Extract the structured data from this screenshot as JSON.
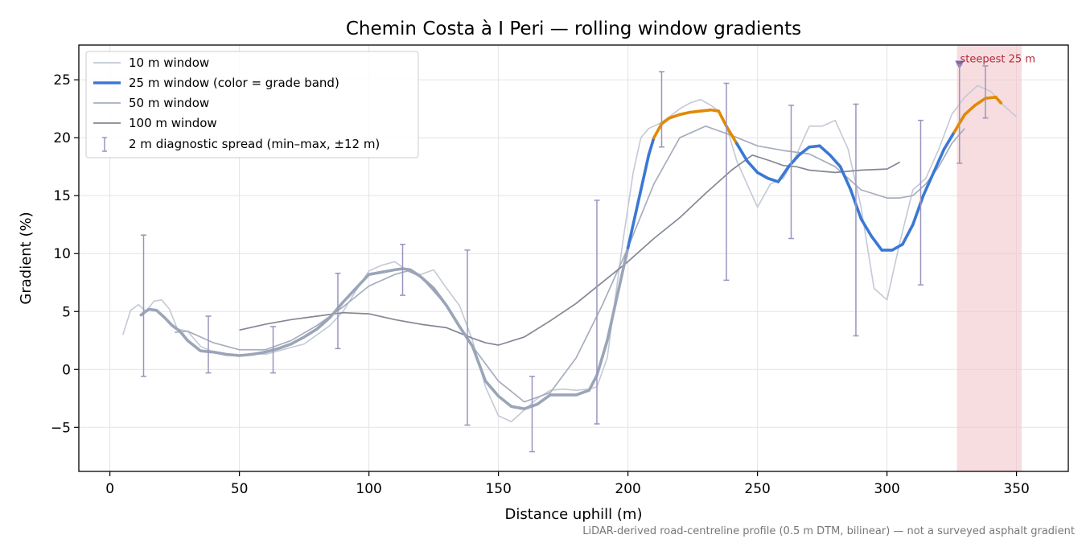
{
  "chart_data": {
    "type": "line",
    "title": "Chemin Costa à I Peri — rolling window gradients",
    "xlabel": "Distance uphill (m)",
    "ylabel": "Gradient (%)",
    "xlim": [
      -12,
      370
    ],
    "ylim": [
      -8.8,
      28
    ],
    "xticks": [
      0,
      50,
      100,
      150,
      200,
      250,
      300,
      350
    ],
    "yticks": [
      -5,
      0,
      5,
      10,
      15,
      20,
      25
    ],
    "grid": true,
    "legend_position": "top-left",
    "footnote": "LiDAR-derived road-centreline profile (0.5 m DTM, bilinear) — not a surveyed asphalt gradient",
    "colors": {
      "w10": "#c3c9d6",
      "w25_base": "#9aa5b8",
      "w25_blue": "#3a78d4",
      "w25_orange": "#e08a00",
      "w50": "#a6aebe",
      "w100": "#838895",
      "errbar": "#9a94bd",
      "highlight": "#f2c6cb",
      "annot": "#b22a3a",
      "marker": "#7d6aa6"
    },
    "series": [
      {
        "name": "10 m window",
        "x": [
          5,
          8,
          11,
          14,
          17,
          20,
          23,
          26,
          30,
          35,
          40,
          45,
          50,
          55,
          60,
          65,
          70,
          75,
          80,
          85,
          90,
          95,
          100,
          105,
          110,
          115,
          120,
          125,
          130,
          135,
          140,
          145,
          150,
          155,
          160,
          165,
          170,
          175,
          180,
          185,
          188,
          192,
          195,
          198,
          202,
          205,
          208,
          212,
          216,
          220,
          224,
          228,
          232,
          235,
          238,
          242,
          246,
          250,
          255,
          260,
          265,
          270,
          275,
          280,
          285,
          290,
          295,
          300,
          305,
          310,
          315,
          320,
          325,
          330,
          335,
          340,
          345,
          350
        ],
        "y": [
          3.0,
          5.1,
          5.6,
          5.0,
          5.9,
          6.0,
          5.2,
          3.5,
          3.3,
          2.0,
          1.5,
          1.2,
          1.2,
          1.4,
          1.3,
          1.6,
          1.9,
          2.2,
          3.0,
          3.8,
          5.0,
          6.8,
          8.5,
          9.0,
          9.3,
          8.5,
          8.2,
          8.6,
          7.0,
          5.5,
          2.5,
          -1.5,
          -4.0,
          -4.5,
          -3.5,
          -2.5,
          -1.8,
          -1.7,
          -1.8,
          -1.7,
          -1.5,
          1.0,
          6.0,
          11.0,
          17.0,
          20.0,
          20.8,
          21.2,
          21.8,
          22.5,
          23.0,
          23.3,
          22.8,
          22.3,
          21.0,
          18.0,
          16.0,
          14.0,
          16.0,
          16.5,
          18.5,
          21.0,
          21.0,
          21.5,
          19.0,
          14.0,
          7.0,
          6.0,
          11.0,
          15.5,
          16.5,
          19.0,
          22.0,
          23.5,
          24.5,
          24.0,
          22.8,
          21.8
        ]
      },
      {
        "name": "25 m window (color = grade band)",
        "x": [
          12,
          15,
          18,
          21,
          24,
          27,
          30,
          35,
          40,
          45,
          50,
          55,
          60,
          65,
          70,
          75,
          80,
          85,
          90,
          95,
          100,
          105,
          110,
          113,
          116,
          120,
          125,
          130,
          135,
          140,
          145,
          150,
          155,
          160,
          165,
          170,
          175,
          180,
          185,
          188,
          192,
          196,
          200,
          204,
          208,
          210,
          213,
          216,
          220,
          224,
          228,
          232,
          235,
          238,
          242,
          246,
          250,
          254,
          258,
          262,
          266,
          270,
          274,
          278,
          282,
          286,
          290,
          294,
          298,
          302,
          306,
          310,
          314,
          318,
          322,
          326,
          330,
          334,
          338,
          342,
          344
        ],
        "y": [
          4.7,
          5.2,
          5.1,
          4.5,
          3.8,
          3.3,
          2.5,
          1.6,
          1.5,
          1.3,
          1.2,
          1.3,
          1.5,
          1.8,
          2.2,
          2.8,
          3.5,
          4.5,
          5.8,
          7.0,
          8.2,
          8.4,
          8.6,
          8.7,
          8.6,
          8.0,
          7.0,
          5.5,
          3.7,
          2.0,
          -1.0,
          -2.3,
          -3.2,
          -3.4,
          -3.0,
          -2.2,
          -2.2,
          -2.2,
          -1.8,
          -0.5,
          2.5,
          6.5,
          10.5,
          14.5,
          18.5,
          20.0,
          21.2,
          21.7,
          22.0,
          22.2,
          22.3,
          22.4,
          22.3,
          21.0,
          19.5,
          18.0,
          17.0,
          16.5,
          16.2,
          17.5,
          18.5,
          19.2,
          19.3,
          18.5,
          17.5,
          15.5,
          13.0,
          11.5,
          10.3,
          10.3,
          10.8,
          12.5,
          15.0,
          17.0,
          19.0,
          20.5,
          22.0,
          22.8,
          23.4,
          23.5,
          23.0
        ]
      },
      {
        "name": "50 m window",
        "x": [
          25,
          30,
          40,
          50,
          60,
          70,
          80,
          90,
          100,
          110,
          115,
          120,
          130,
          140,
          150,
          160,
          170,
          180,
          190,
          200,
          210,
          220,
          230,
          240,
          250,
          260,
          270,
          280,
          290,
          300,
          305,
          310,
          315,
          320,
          325,
          330
        ],
        "y": [
          3.2,
          3.3,
          2.3,
          1.7,
          1.7,
          2.5,
          3.8,
          5.4,
          7.2,
          8.2,
          8.5,
          8.0,
          5.5,
          2.0,
          -1.0,
          -2.8,
          -2.0,
          1.0,
          5.5,
          10.5,
          16.0,
          20.0,
          21.0,
          20.2,
          19.3,
          18.9,
          18.6,
          17.5,
          15.5,
          14.8,
          14.8,
          15.0,
          16.0,
          17.5,
          19.5,
          20.8
        ]
      },
      {
        "name": "100 m window",
        "x": [
          50,
          60,
          70,
          80,
          90,
          100,
          110,
          120,
          130,
          140,
          145,
          150,
          160,
          170,
          180,
          190,
          200,
          210,
          220,
          230,
          240,
          248,
          255,
          260,
          265,
          270,
          275,
          280,
          290,
          300,
          305
        ],
        "y": [
          3.4,
          3.9,
          4.3,
          4.6,
          4.9,
          4.8,
          4.3,
          3.9,
          3.6,
          2.7,
          2.3,
          2.1,
          2.8,
          4.2,
          5.7,
          7.5,
          9.3,
          11.3,
          13.1,
          15.2,
          17.2,
          18.5,
          18.0,
          17.6,
          17.5,
          17.2,
          17.1,
          17.0,
          17.2,
          17.3,
          17.9
        ]
      }
    ],
    "grade_bands": [
      {
        "name": "blue",
        "min": 0,
        "max": 20
      },
      {
        "name": "orange",
        "min": 20,
        "max": 100
      }
    ],
    "error_bars": {
      "name": "2 m diagnostic spread (min–max, ±12 m)",
      "x": [
        13,
        38,
        63,
        88,
        113,
        138,
        163,
        188,
        213,
        238,
        263,
        288,
        313,
        328,
        338
      ],
      "y": [
        4.6,
        2.0,
        1.8,
        4.6,
        8.5,
        2.6,
        -3.4,
        5.2,
        22.5,
        16.4,
        17.5,
        13.0,
        14.5,
        22.2,
        24.0
      ],
      "low": [
        -0.6,
        -0.3,
        -0.3,
        1.8,
        6.4,
        -4.8,
        -7.1,
        -4.7,
        19.2,
        7.7,
        11.3,
        2.9,
        7.3,
        17.8,
        21.7
      ],
      "high": [
        11.6,
        4.6,
        3.7,
        8.3,
        10.8,
        10.3,
        -0.6,
        14.6,
        25.7,
        24.7,
        22.8,
        22.9,
        21.5,
        26.3,
        26.2
      ]
    },
    "highlight": {
      "x_start": 327,
      "x_end": 352,
      "label": "steepest 25 m",
      "marker_x": 328,
      "marker_y": 26.3
    }
  }
}
